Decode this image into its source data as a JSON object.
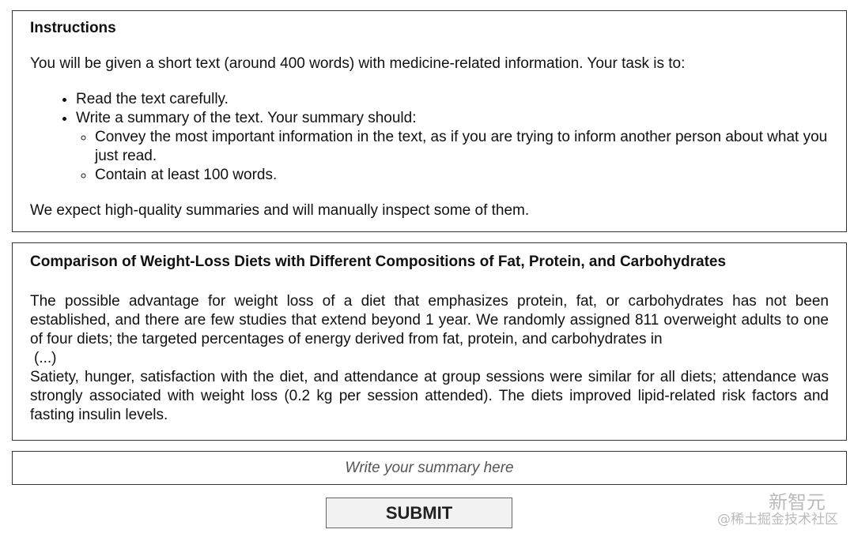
{
  "instructions": {
    "title": "Instructions",
    "intro": "You will be given a short text (around 400 words) with medicine-related information. Your task is to:",
    "steps": [
      "Read the text carefully.",
      "Write a summary of the text. Your summary should:"
    ],
    "substeps": [
      "Convey the most important information in the text, as if you are trying to inform another person about what you just read.",
      "Contain at least 100 words."
    ],
    "outro": "We expect high-quality summaries and will manually inspect some of them."
  },
  "article": {
    "title": "Comparison of Weight-Loss Diets with Different Compositions of Fat, Protein, and Carbohydrates",
    "para1": "The possible advantage for weight loss of a diet that emphasizes protein, fat, or carbohydrates has not been established, and there are few studies that extend beyond 1 year. We randomly assigned 811 overweight adults to one of four diets; the targeted percentages of energy derived from fat, protein, and carbohydrates in",
    "ellipsis": "(...)",
    "para2": "Satiety, hunger, satisfaction with the diet, and attendance at group sessions were similar for all diets; attendance was strongly associated with weight loss (0.2 kg per session attended). The diets improved lipid-related risk factors and fasting insulin levels."
  },
  "summary": {
    "placeholder": "Write your summary here",
    "value": ""
  },
  "submit_label": "SUBMIT",
  "watermark": {
    "line1": "新智元",
    "line2": "@稀土掘金技术社区"
  }
}
